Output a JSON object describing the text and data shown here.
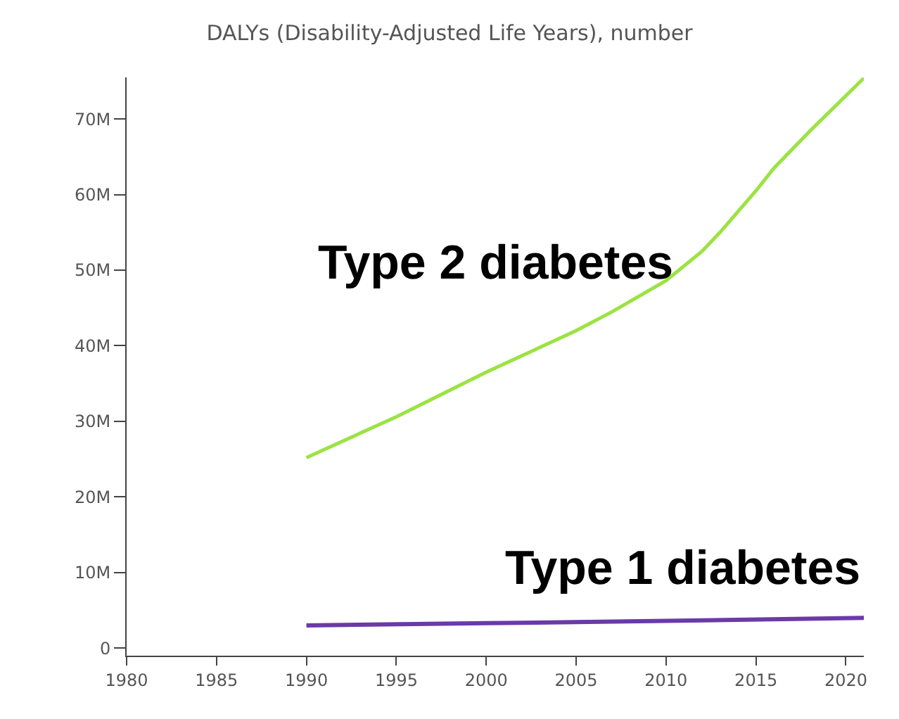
{
  "chart_data": {
    "type": "line",
    "title": "DALYs (Disability-Adjusted Life Years), number",
    "xlim": [
      1980,
      2021
    ],
    "xticks": [
      1980,
      1985,
      1990,
      1995,
      2000,
      2005,
      2010,
      2015,
      2020
    ],
    "ylim": [
      -1000000,
      75500000
    ],
    "yticks": [
      {
        "value": 0,
        "label": "0"
      },
      {
        "value": 10000000,
        "label": "10M"
      },
      {
        "value": 20000000,
        "label": "20M"
      },
      {
        "value": 30000000,
        "label": "30M"
      },
      {
        "value": 40000000,
        "label": "40M"
      },
      {
        "value": 50000000,
        "label": "50M"
      },
      {
        "value": 60000000,
        "label": "60M"
      },
      {
        "value": 70000000,
        "label": "70M"
      }
    ],
    "marker": "none",
    "line_style": "solid",
    "series": [
      {
        "name": "Type 2 diabetes",
        "color": "#9be342",
        "x": [
          1990,
          1995,
          2000,
          2005,
          2007,
          2010,
          2012,
          2013,
          2015,
          2016,
          2018,
          2021
        ],
        "values": [
          25200000,
          30600000,
          36500000,
          42000000,
          44500000,
          48600000,
          52500000,
          55000000,
          60500000,
          63500000,
          68400000,
          75400000
        ]
      },
      {
        "name": "Type 1 diabetes",
        "color": "#6a3aa8",
        "x": [
          1990,
          2000,
          2010,
          2021
        ],
        "values": [
          3000000,
          3300000,
          3600000,
          4000000
        ]
      }
    ]
  }
}
